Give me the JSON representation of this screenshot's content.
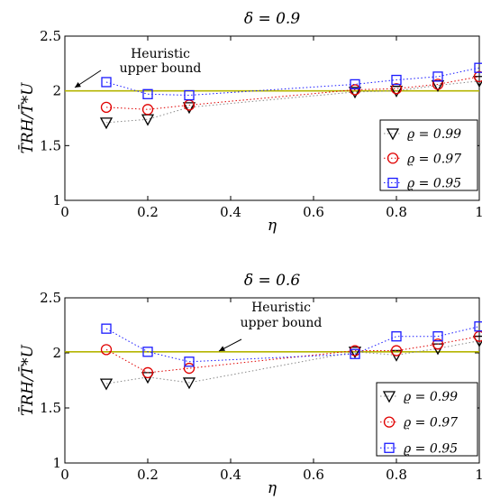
{
  "chart_data": [
    {
      "type": "scatter",
      "title": "δ = 0.9",
      "xlabel": "η",
      "ylabel": "T̄RH/T̄*U",
      "xlim": [
        0,
        1
      ],
      "ylim": [
        1,
        2.5
      ],
      "xticks": [
        "0",
        "0.2",
        "0.4",
        "0.6",
        "0.8",
        "1"
      ],
      "yticks": [
        "1",
        "1.5",
        "2",
        "2.5"
      ],
      "legend_placement": "lower-right",
      "hline": {
        "y": 2.0,
        "color": "#b5b500"
      },
      "annotation": [
        "Heuristic",
        "upper bound"
      ],
      "series": [
        {
          "name": "ϱ = 0.99",
          "marker": "triangle-down",
          "color": "#000000",
          "line_color": "#888888",
          "x": [
            0.1,
            0.2,
            0.3,
            0.7,
            0.8,
            0.9,
            1.0
          ],
          "y": [
            1.71,
            1.74,
            1.85,
            1.99,
            2.0,
            2.05,
            2.09
          ]
        },
        {
          "name": "ϱ = 0.97",
          "marker": "circle",
          "color": "#e00000",
          "line_color": "#e00000",
          "x": [
            0.1,
            0.2,
            0.3,
            0.7,
            0.8,
            0.9,
            1.0
          ],
          "y": [
            1.85,
            1.83,
            1.87,
            2.01,
            2.02,
            2.06,
            2.13
          ]
        },
        {
          "name": "ϱ = 0.95",
          "marker": "square",
          "color": "#1a1aff",
          "line_color": "#1a1aff",
          "x": [
            0.1,
            0.2,
            0.3,
            0.7,
            0.8,
            0.9,
            1.0
          ],
          "y": [
            2.08,
            1.97,
            1.96,
            2.06,
            2.1,
            2.13,
            2.21
          ]
        }
      ]
    },
    {
      "type": "scatter",
      "title": "δ = 0.6",
      "xlabel": "η",
      "ylabel": "T̄RH/T̄*U",
      "xlim": [
        0,
        1
      ],
      "ylim": [
        1,
        2.5
      ],
      "xticks": [
        "0",
        "0.2",
        "0.4",
        "0.6",
        "0.8",
        "1"
      ],
      "yticks": [
        "1",
        "1.5",
        "2",
        "2.5"
      ],
      "legend_placement": "lower-right",
      "hline": {
        "y": 2.01,
        "color": "#b5b500"
      },
      "annotation": [
        "Heuristic",
        "upper bound"
      ],
      "series": [
        {
          "name": "ϱ = 0.99",
          "marker": "triangle-down",
          "color": "#000000",
          "line_color": "#888888",
          "x": [
            0.1,
            0.2,
            0.3,
            0.7,
            0.8,
            0.9,
            1.0
          ],
          "y": [
            1.72,
            1.78,
            1.73,
            2.01,
            1.98,
            2.04,
            2.11
          ]
        },
        {
          "name": "ϱ = 0.97",
          "marker": "circle",
          "color": "#e00000",
          "line_color": "#e00000",
          "x": [
            0.1,
            0.2,
            0.3,
            0.7,
            0.8,
            0.9,
            1.0
          ],
          "y": [
            2.03,
            1.82,
            1.86,
            2.02,
            2.02,
            2.08,
            2.15
          ]
        },
        {
          "name": "ϱ = 0.95",
          "marker": "square",
          "color": "#1a1aff",
          "line_color": "#1a1aff",
          "x": [
            0.1,
            0.2,
            0.3,
            0.7,
            0.8,
            0.9,
            1.0
          ],
          "y": [
            2.22,
            2.01,
            1.92,
            1.99,
            2.15,
            2.15,
            2.24
          ]
        }
      ]
    }
  ]
}
